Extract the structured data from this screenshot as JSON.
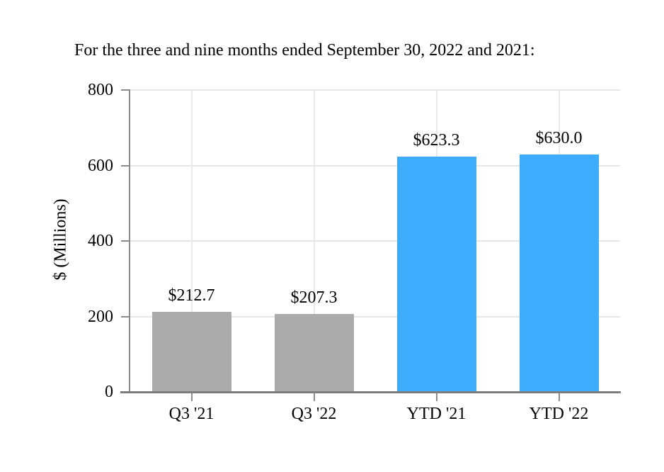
{
  "chart_data": {
    "type": "bar",
    "title": "For the three and nine months ended September 30, 2022 and 2021:",
    "ylabel": "$ (Millions)",
    "xlabel": "",
    "categories": [
      "Q3 '21",
      "Q3 '22",
      "YTD '21",
      "YTD '22"
    ],
    "values": [
      212.7,
      207.3,
      623.3,
      630.0
    ],
    "value_labels": [
      "$212.7",
      "$207.3",
      "$623.3",
      "$630.0"
    ],
    "bar_colors": [
      "#ABABAB",
      "#ABABAB",
      "#3DACFC",
      "#3DACFC"
    ],
    "ylim": [
      0,
      800
    ],
    "yticks": [
      0,
      200,
      400,
      600,
      800
    ],
    "ytick_labels": [
      "0",
      "200",
      "400",
      "600",
      "800"
    ],
    "grid": true,
    "legend": false
  },
  "colors": {
    "bar_gray": "#ABABAB",
    "bar_blue": "#3DACFC",
    "gridline": "#E6E6E6",
    "axis": "#8C8C8C",
    "baseline": "#7D7D7D",
    "text": "#000000",
    "background": "#FFFFFF"
  }
}
